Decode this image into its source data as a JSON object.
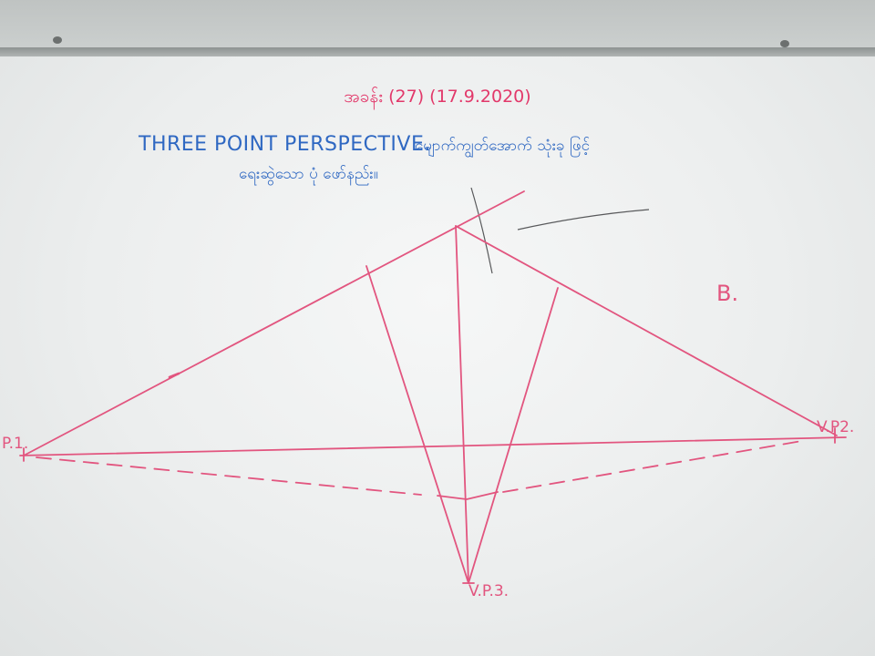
{
  "board": {
    "heading_line1": "အခန်း (27) (17.9.2020)",
    "title_latin": "THREE POINT PERSPECTIVE.",
    "title_myanmar_line1": "မျောက်ကျွတ်အောက် သုံးခု ဖြင့်",
    "title_myanmar_line2": "ရေးဆွဲသော ပုံ ဖော်နည်း။"
  },
  "labels": {
    "vp1": "P.1.",
    "vp2": "V.P2.",
    "vp3": "V.P.3.",
    "section": "B."
  },
  "colors": {
    "ink_red": "#e2386a",
    "ink_blue": "#2f68c2",
    "ink_pink": "#e2557f",
    "marker_gray": "#58595b"
  }
}
